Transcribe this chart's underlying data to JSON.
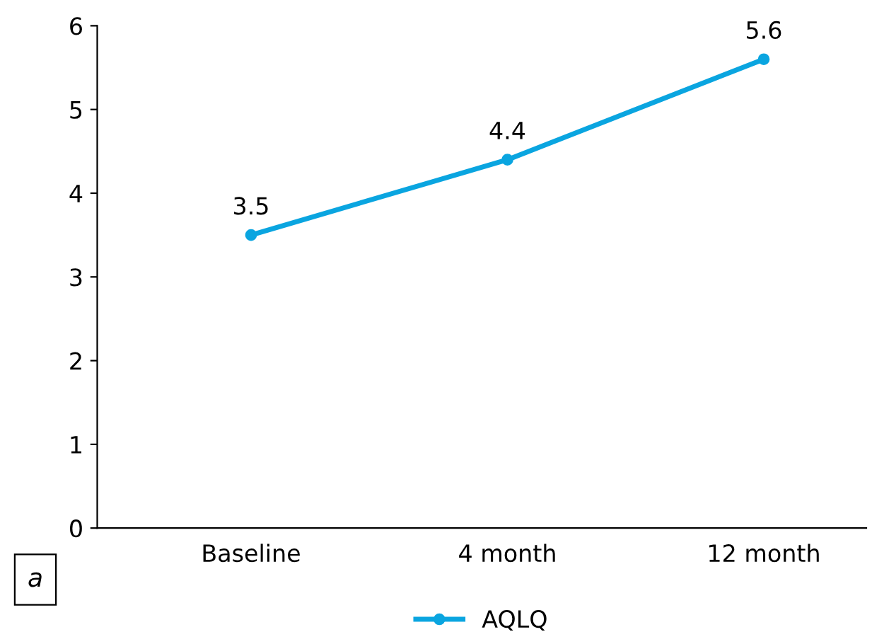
{
  "chart_data": {
    "type": "line",
    "categories": [
      "Baseline",
      "4 month",
      "12 month"
    ],
    "series": [
      {
        "name": "AQLQ",
        "color": "#0aa5e0",
        "values": [
          3.5,
          4.4,
          5.6
        ]
      }
    ],
    "ylim": [
      0,
      6
    ],
    "yticks": [
      0,
      1,
      2,
      3,
      4,
      5,
      6
    ],
    "data_labels": true,
    "marker": "circle",
    "line_style": "solid",
    "legend": "bottom",
    "grid": false,
    "annotations": [
      "a"
    ]
  }
}
